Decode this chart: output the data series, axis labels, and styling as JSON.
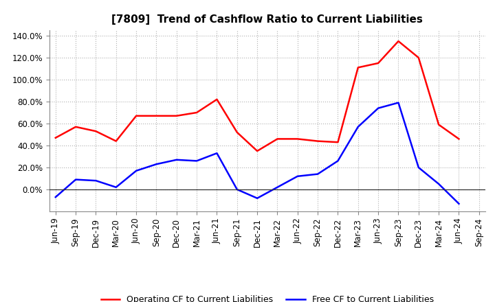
{
  "title": "[7809]  Trend of Cashflow Ratio to Current Liabilities",
  "x_labels": [
    "Jun-19",
    "Sep-19",
    "Dec-19",
    "Mar-20",
    "Jun-20",
    "Sep-20",
    "Dec-20",
    "Mar-21",
    "Jun-21",
    "Sep-21",
    "Dec-21",
    "Mar-22",
    "Jun-22",
    "Sep-22",
    "Dec-22",
    "Mar-23",
    "Jun-23",
    "Sep-23",
    "Dec-23",
    "Mar-24",
    "Jun-24",
    "Sep-24"
  ],
  "operating_cf": [
    0.47,
    0.57,
    0.53,
    0.44,
    0.67,
    0.67,
    0.67,
    0.7,
    0.82,
    0.52,
    0.35,
    0.46,
    0.46,
    0.44,
    0.43,
    1.11,
    1.15,
    1.35,
    1.2,
    0.59,
    0.46,
    null
  ],
  "free_cf": [
    -0.07,
    0.09,
    0.08,
    0.02,
    0.17,
    0.23,
    0.27,
    0.26,
    0.33,
    0.0,
    -0.08,
    0.02,
    0.12,
    0.14,
    0.26,
    0.57,
    0.74,
    0.79,
    0.2,
    0.05,
    -0.13,
    null
  ],
  "operating_cf_color": "#ff0000",
  "free_cf_color": "#0000ff",
  "background_color": "#ffffff",
  "grid_color": "#b0b0b0",
  "ylim": [
    -0.2,
    1.45
  ],
  "yticks": [
    0.0,
    0.2,
    0.4,
    0.6,
    0.8,
    1.0,
    1.2,
    1.4
  ],
  "legend_operating": "Operating CF to Current Liabilities",
  "legend_free": "Free CF to Current Liabilities",
  "title_fontsize": 11,
  "axis_fontsize": 8.5,
  "legend_fontsize": 9
}
